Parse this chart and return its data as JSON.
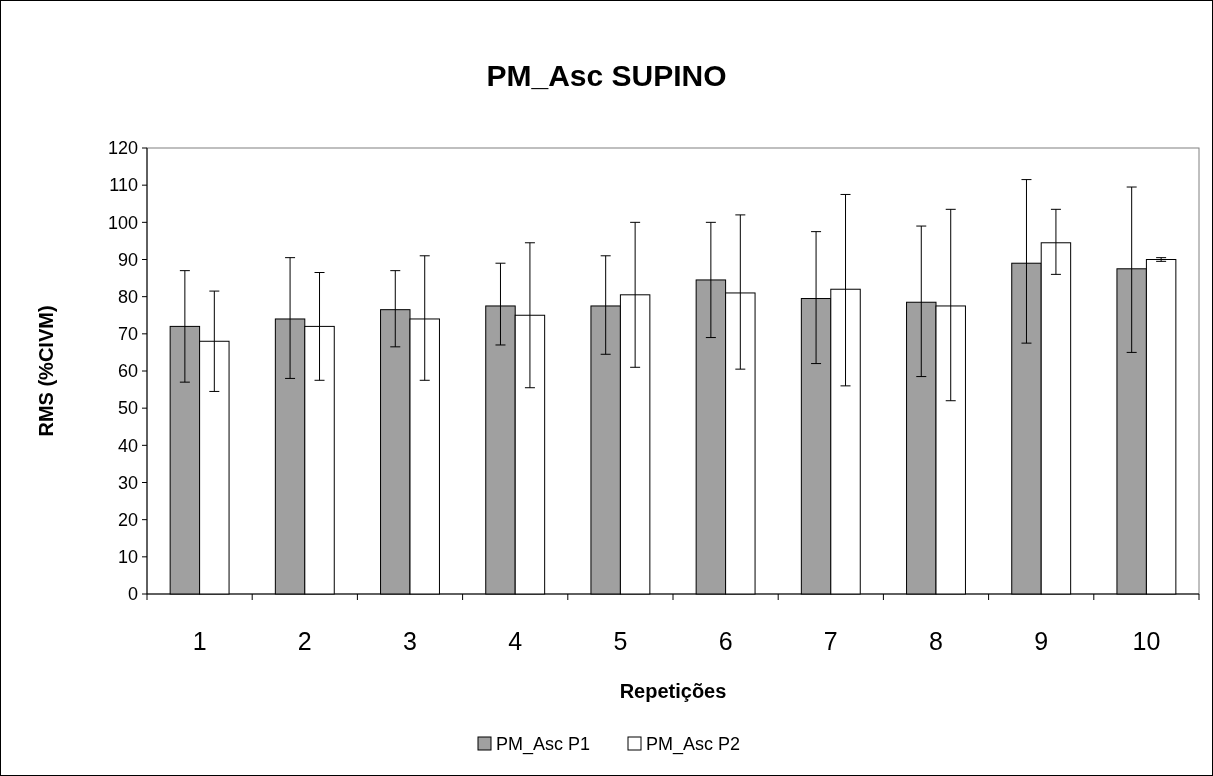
{
  "chart_data": {
    "type": "bar",
    "title": "PM_Asc SUPINO",
    "xlabel": "Repetições",
    "ylabel": "RMS (%CIVM)",
    "categories": [
      "1",
      "2",
      "3",
      "4",
      "5",
      "6",
      "7",
      "8",
      "9",
      "10"
    ],
    "series": [
      {
        "name": "PM_Asc P1",
        "color": "#a0a0a0",
        "values": [
          72,
          74,
          76.5,
          77.5,
          77.5,
          84.5,
          79.5,
          78.5,
          89,
          87.5
        ],
        "errors": [
          [
            57,
            87
          ],
          [
            58,
            90.5
          ],
          [
            66.5,
            87
          ],
          [
            67,
            89
          ],
          [
            64.5,
            91
          ],
          [
            69,
            100
          ],
          [
            62,
            97.5
          ],
          [
            58.5,
            99
          ],
          [
            67.5,
            111.5
          ],
          [
            65,
            109.5
          ]
        ]
      },
      {
        "name": "PM_Asc P2",
        "color": "#ffffff",
        "values": [
          68,
          72,
          74,
          75,
          80.5,
          81,
          82,
          77.5,
          94.5,
          90
        ],
        "errors": [
          [
            54.5,
            81.5
          ],
          [
            57.5,
            86.5
          ],
          [
            57.5,
            91
          ],
          [
            55.5,
            94.5
          ],
          [
            61,
            100
          ],
          [
            60.5,
            102
          ],
          [
            56,
            107.5
          ],
          [
            52,
            103.5
          ],
          [
            86,
            103.5
          ],
          [
            89.5,
            90.5
          ]
        ]
      }
    ],
    "ylim": [
      0,
      120
    ],
    "yticks": [
      0,
      10,
      20,
      30,
      40,
      50,
      60,
      70,
      80,
      90,
      100,
      110,
      120
    ],
    "grid": false,
    "legend": "bottom"
  }
}
